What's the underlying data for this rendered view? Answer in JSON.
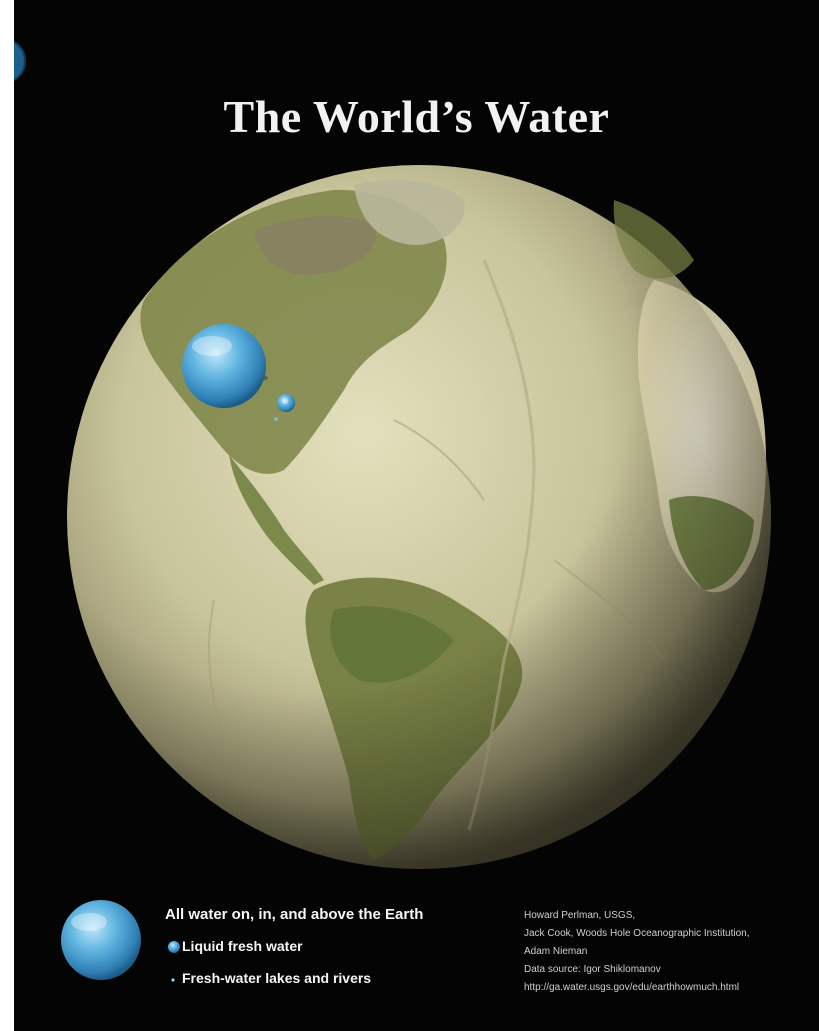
{
  "title": "The World’s Water",
  "legend": {
    "all_water": "All water on, in, and above the Earth",
    "liquid_fresh": "Liquid fresh water",
    "lakes_rivers": "Fresh-water lakes and rivers"
  },
  "credits": [
    "Howard Perlman, USGS,",
    "Jack Cook, Woods Hole Oceanographic Institution,",
    "Adam Nieman",
    "Data source: Igor Shiklomanov",
    "http://ga.water.usgs.gov/edu/earthhowmuch.html"
  ],
  "colors": {
    "background": "#040404",
    "globe_surface": "#c9c69a",
    "land_green": "#6f7f3e",
    "water_sphere": "#4aa3d4"
  }
}
